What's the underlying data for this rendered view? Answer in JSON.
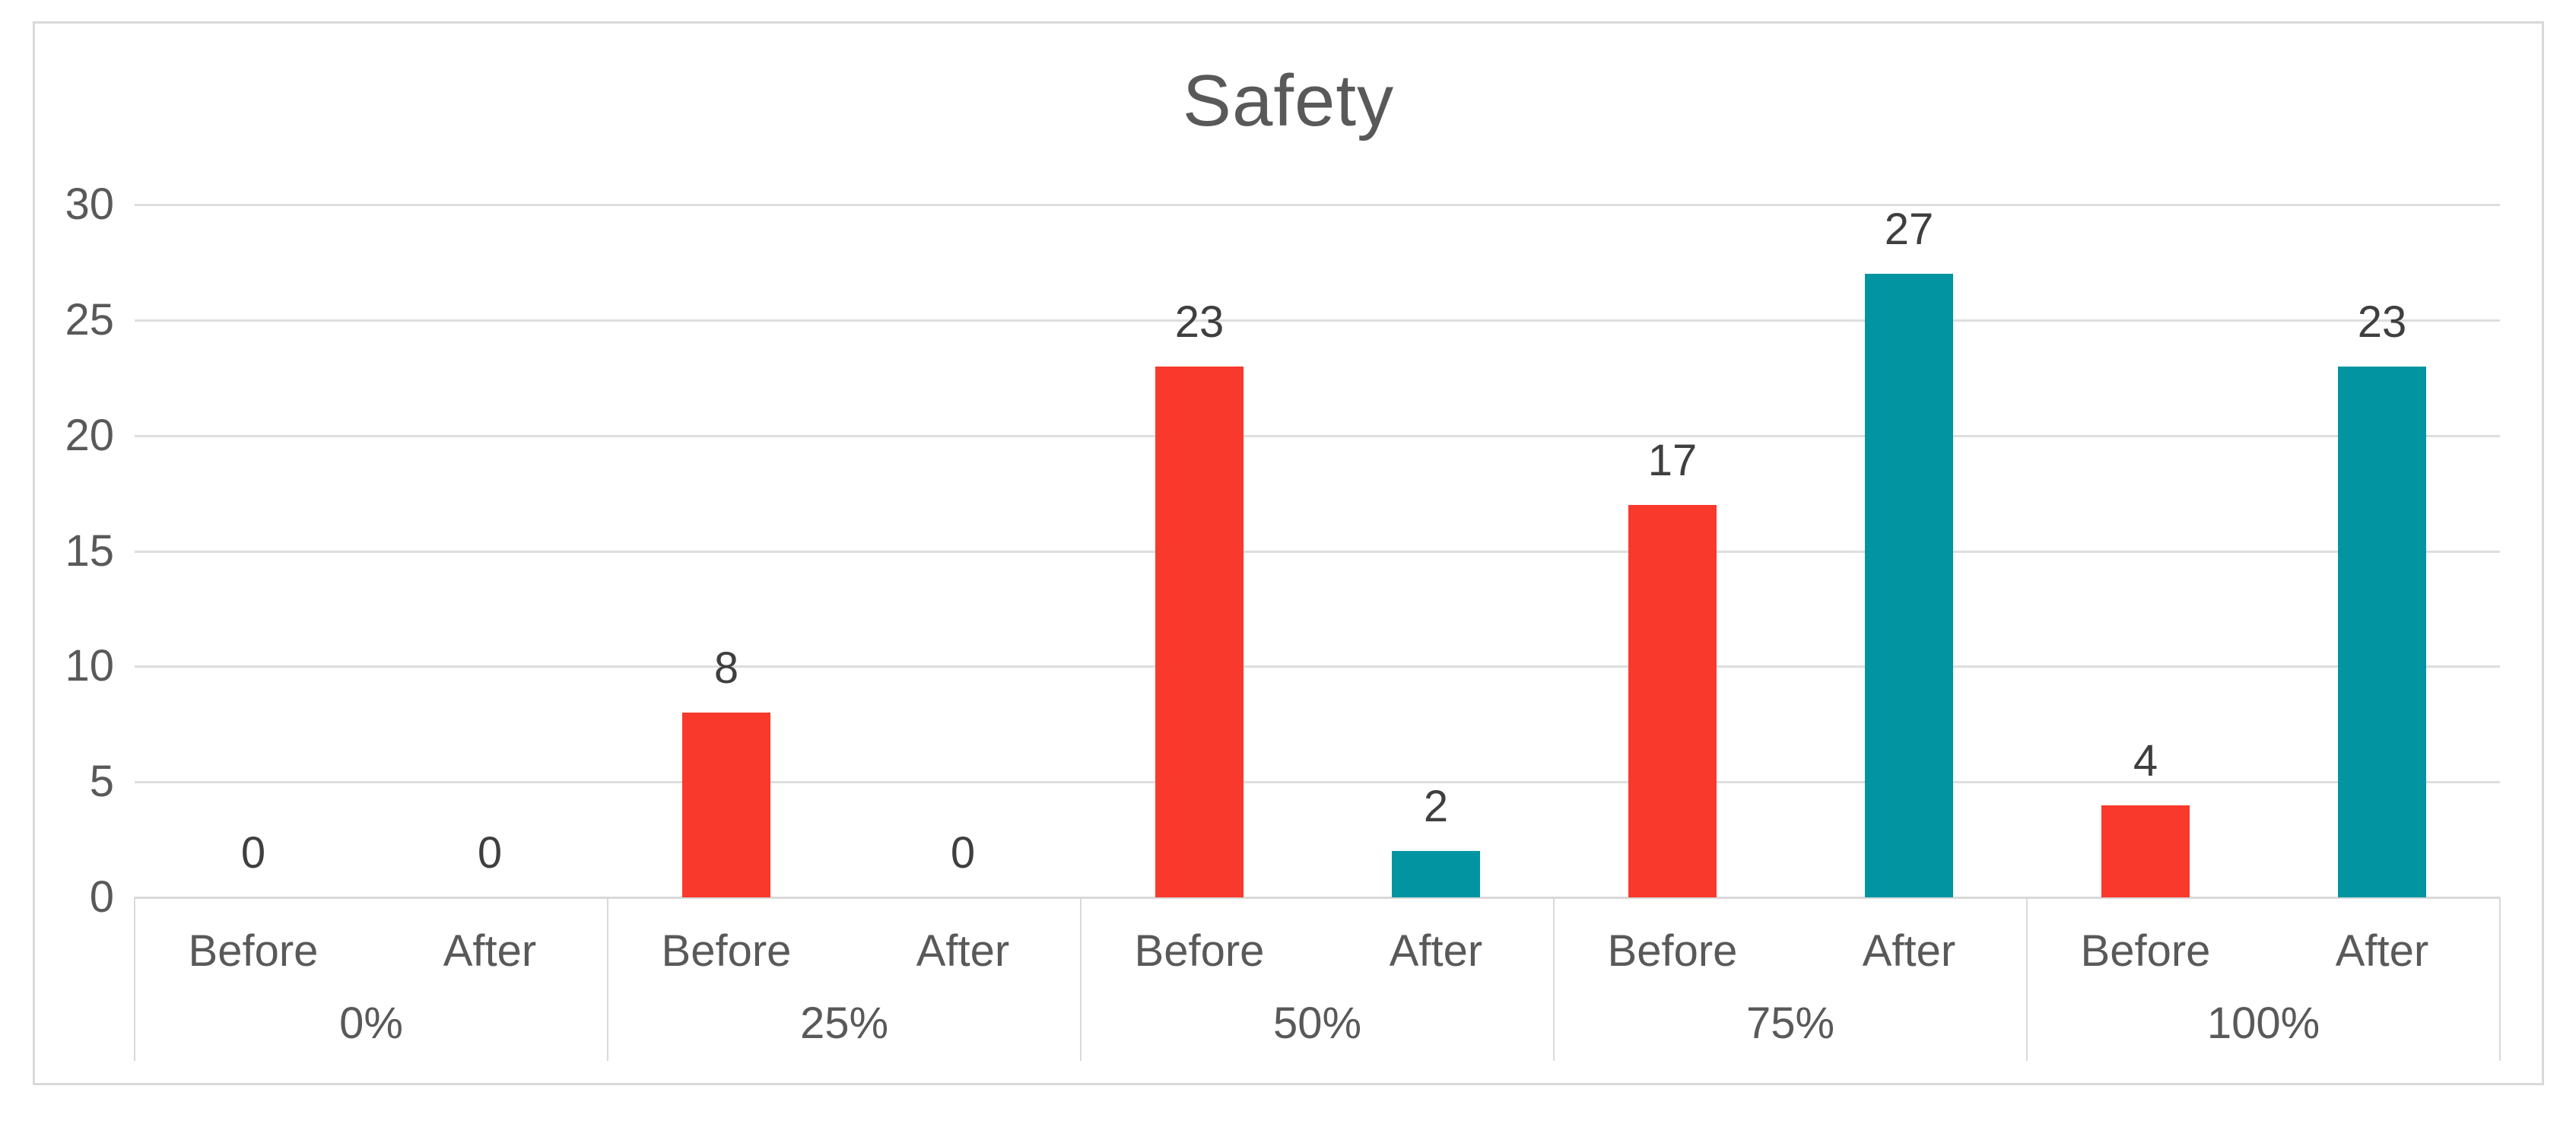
{
  "chart_data": {
    "type": "bar",
    "title": "Safety",
    "categories": [
      "0%",
      "25%",
      "50%",
      "75%",
      "100%"
    ],
    "sub_categories": [
      "Before",
      "After"
    ],
    "series": [
      {
        "name": "Before",
        "values": [
          0,
          8,
          23,
          17,
          4
        ]
      },
      {
        "name": "After",
        "values": [
          0,
          0,
          2,
          27,
          23
        ]
      }
    ],
    "xlabel": "",
    "ylabel": "",
    "ylim": [
      0,
      30
    ],
    "yticks": [
      0,
      5,
      10,
      15,
      20,
      25,
      30
    ],
    "grid": "horizontal",
    "legend": "none"
  },
  "colors": {
    "before_bar": "#F9392B",
    "after_bar": "#0295A1",
    "title_text": "#595959",
    "axis_text": "#595959",
    "value_text": "#3F3F3F",
    "gridline": "#DEDEDE",
    "axis_line": "#D9D9D9",
    "frame_border": "#D9D9D9",
    "background": "#FFFFFF"
  }
}
